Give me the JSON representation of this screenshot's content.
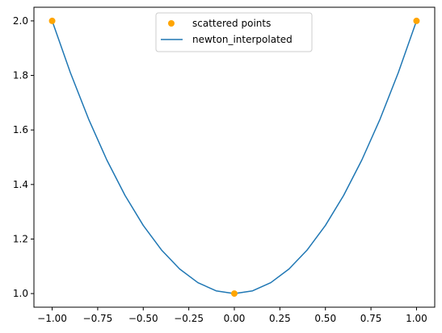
{
  "chart_data": {
    "type": "line",
    "title": "",
    "xlabel": "",
    "ylabel": "",
    "xlim": [
      -1.1,
      1.1
    ],
    "ylim": [
      0.95,
      2.05
    ],
    "grid": false,
    "legend_position": "top-center",
    "x_ticks": [
      -1.0,
      -0.75,
      -0.5,
      -0.25,
      0.0,
      0.25,
      0.5,
      0.75,
      1.0
    ],
    "x_tick_labels": [
      "−1.00",
      "−0.75",
      "−0.50",
      "−0.25",
      "0.00",
      "0.25",
      "0.50",
      "0.75",
      "1.00"
    ],
    "y_ticks": [
      1.0,
      1.2,
      1.4,
      1.6,
      1.8,
      2.0
    ],
    "y_tick_labels": [
      "1.0",
      "1.2",
      "1.4",
      "1.6",
      "1.8",
      "2.0"
    ],
    "series": [
      {
        "name": "scattered points",
        "kind": "scatter",
        "color": "#FFA500",
        "x": [
          -1.0,
          0.0,
          1.0
        ],
        "y": [
          2.0,
          1.0,
          2.0
        ]
      },
      {
        "name": "newton_interpolated",
        "kind": "line",
        "color": "#1F77B4",
        "x": [
          -1.0,
          -0.9,
          -0.8,
          -0.7,
          -0.6,
          -0.5,
          -0.4,
          -0.3,
          -0.2,
          -0.1,
          0.0,
          0.1,
          0.2,
          0.3,
          0.4,
          0.5,
          0.6,
          0.7,
          0.8,
          0.9,
          1.0
        ],
        "y": [
          2.0,
          1.81,
          1.64,
          1.49,
          1.36,
          1.25,
          1.16,
          1.09,
          1.04,
          1.01,
          1.0,
          1.01,
          1.04,
          1.09,
          1.16,
          1.25,
          1.36,
          1.49,
          1.64,
          1.81,
          2.0
        ]
      }
    ]
  }
}
